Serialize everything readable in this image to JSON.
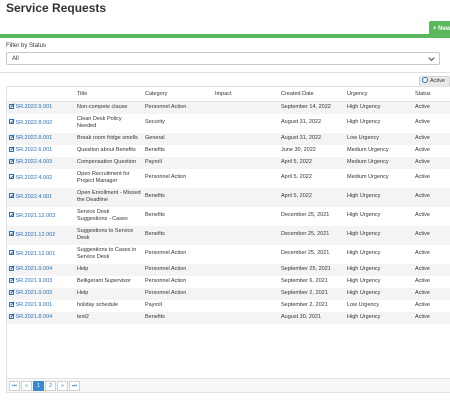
{
  "page": {
    "title": "Service Requests"
  },
  "toolbar": {
    "new_label": "+ New"
  },
  "filter": {
    "label": "Filter by Status",
    "selected": "All"
  },
  "active_toggle": {
    "label": "Active"
  },
  "table": {
    "headers": [
      "",
      "Title",
      "Category",
      "Impact",
      "Created Date",
      "Urgency",
      "Status"
    ],
    "rows": [
      {
        "id": "SR.2022.9.001",
        "title": "Non-compete clause",
        "category": "Personnel Action",
        "impact": "",
        "created": "September 14, 2022",
        "urgency": "High Urgency",
        "status": "Active"
      },
      {
        "id": "SR.2022.8.002",
        "title": "Clean Desk Policy Needed",
        "category": "Security",
        "impact": "",
        "created": "August 31, 2022",
        "urgency": "High Urgency",
        "status": "Active"
      },
      {
        "id": "SR.2022.8.001",
        "title": "Break room fridge smells",
        "category": "General",
        "impact": "",
        "created": "August 31, 2022",
        "urgency": "Low Urgency",
        "status": "Active"
      },
      {
        "id": "SR.2022.6.001",
        "title": "Question about Benefits",
        "category": "Benefits",
        "impact": "",
        "created": "June 30, 2022",
        "urgency": "Medium Urgency",
        "status": "Active"
      },
      {
        "id": "SR.2022.4.003",
        "title": "Compensation Question",
        "category": "Payroll",
        "impact": "",
        "created": "April 5, 2022",
        "urgency": "Medium Urgency",
        "status": "Active"
      },
      {
        "id": "SR.2022.4.002",
        "title": "Open Recruitment for Project Manager",
        "category": "Personnel Action",
        "impact": "",
        "created": "April 5, 2022",
        "urgency": "Medium Urgency",
        "status": "Active"
      },
      {
        "id": "SR.2022.4.001",
        "title": "Open Enrollment - Missed the Deadline",
        "category": "Benefits",
        "impact": "",
        "created": "April 5, 2022",
        "urgency": "High Urgency",
        "status": "Active"
      },
      {
        "id": "SR.2021.12.003",
        "title": "Service Desk Suggestions - Cases",
        "category": "Benefits",
        "impact": "",
        "created": "December 25, 2021",
        "urgency": "High Urgency",
        "status": "Active"
      },
      {
        "id": "SR.2021.12.002",
        "title": "Suggestions to Service Desk",
        "category": "Benefits",
        "impact": "",
        "created": "December 25, 2021",
        "urgency": "High Urgency",
        "status": "Active"
      },
      {
        "id": "SR.2021.12.001",
        "title": "Suggestions to Cases in Service Desk",
        "category": "Personnel Action",
        "impact": "",
        "created": "December 25, 2021",
        "urgency": "High Urgency",
        "status": "Active"
      },
      {
        "id": "SR.2021.9.004",
        "title": "Help",
        "category": "Personnel Action",
        "impact": "",
        "created": "September 25, 2021",
        "urgency": "High Urgency",
        "status": "Active"
      },
      {
        "id": "SR.2021.9.003",
        "title": "Belligerant Supervisor",
        "category": "Personnel Action",
        "impact": "",
        "created": "September 6, 2021",
        "urgency": "High Urgency",
        "status": "Active"
      },
      {
        "id": "SR.2021.9.002",
        "title": "Help",
        "category": "Personnel Action",
        "impact": "",
        "created": "September 2, 2021",
        "urgency": "High Urgency",
        "status": "Active"
      },
      {
        "id": "SR.2021.9.001",
        "title": "holiday schedule",
        "category": "Payroll",
        "impact": "",
        "created": "September 2, 2021",
        "urgency": "Low Urgency",
        "status": "Active"
      },
      {
        "id": "SR.2021.8.004",
        "title": "test2",
        "category": "Benefits",
        "impact": "",
        "created": "August 30, 2021",
        "urgency": "High Urgency",
        "status": "Active"
      }
    ]
  },
  "pager": {
    "first": "⏮",
    "prev": "«",
    "pages": [
      "1",
      "2"
    ],
    "current": "1",
    "next": "»",
    "last": "⏭"
  },
  "colors": {
    "accent": "#5cb85c",
    "link": "#2a6ebb",
    "pager_current": "#3a8bd1"
  }
}
